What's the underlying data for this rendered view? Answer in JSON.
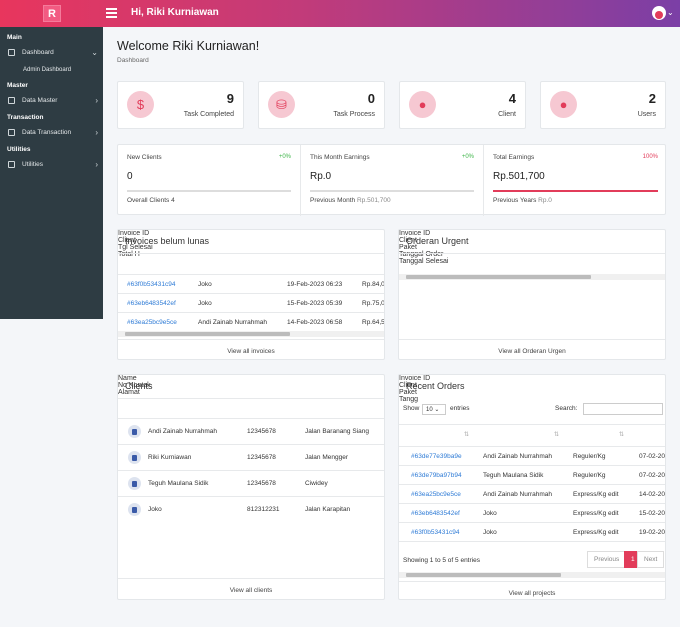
{
  "header": {
    "greeting": "Hi, Riki Kurniawan",
    "logo_letter": "R"
  },
  "sidebar": {
    "sec_main": "Main",
    "dashboard": "Dashboard",
    "admin_dashboard": "Admin Dashboard",
    "sec_master": "Master",
    "data_master": "Data Master",
    "sec_transaction": "Transaction",
    "data_transaction": "Data Transaction",
    "sec_utilities": "Utilities",
    "utilities": "Utilities"
  },
  "page": {
    "title": "Welcome Riki Kurniawan!",
    "breadcrumb": "Dashboard"
  },
  "stats": [
    {
      "value": "9",
      "label": "Task Completed",
      "icon": "dollar-icon"
    },
    {
      "value": "0",
      "label": "Task Process",
      "icon": "coins-icon"
    },
    {
      "value": "4",
      "label": "Client",
      "icon": "user-icon"
    },
    {
      "value": "2",
      "label": "Users",
      "icon": "user-icon"
    }
  ],
  "kpis": [
    {
      "title": "New Clients",
      "pct": "+0%",
      "value": "0",
      "bar_fill": 0,
      "foot": "Overall Clients 4",
      "foot_val": ""
    },
    {
      "title": "This Month Earnings",
      "pct": "+0%",
      "value": "Rp.0",
      "bar_fill": 0,
      "foot": "Previous Month ",
      "foot_val": "Rp.501,700"
    },
    {
      "title": "Total Earnings",
      "pct": "100%",
      "value": "Rp.501,700",
      "bar_fill": 1,
      "foot": "Previous Years ",
      "foot_val": "Rp.0"
    }
  ],
  "invoices": {
    "title": "Invoices belum lunas",
    "columns": [
      "Invoice ID",
      "Client",
      "Tgl Selesai",
      "Total H"
    ],
    "rows": [
      [
        "#63f0b53431c94",
        "Joko",
        "19-Feb-2023 06:23",
        "Rp.84,0"
      ],
      [
        "#63eb6483542ef",
        "Joko",
        "15-Feb-2023 05:39",
        "Rp.75,0"
      ],
      [
        "#63ea25bc9e5ce",
        "Andi Zainab Nurrahmah",
        "14-Feb-2023 06:58",
        "Rp.64,5"
      ]
    ],
    "footer": "View all invoices"
  },
  "urgent": {
    "title": "Orderan Urgent",
    "columns": [
      "Invoice ID",
      "Client",
      "Paket",
      "Tanggal Order",
      "Tanggal Selesai"
    ],
    "footer": "View all Orderan Urgen"
  },
  "clients": {
    "title": "Clients",
    "columns": [
      "Name",
      "No Kontak",
      "Alamat"
    ],
    "rows": [
      [
        "Andi Zainab Nurrahmah",
        "12345678",
        "Jalan Baranang Siang"
      ],
      [
        "Riki Kurniawan",
        "12345678",
        "Jalan Mengger"
      ],
      [
        "Teguh Maulana Sidik",
        "12345678",
        "Ciwidey"
      ],
      [
        "Joko",
        "812312231",
        "Jalan Karapitan"
      ]
    ],
    "footer": "View all clients"
  },
  "recent": {
    "title": "Recent Orders",
    "show": "Show",
    "entries_val": "10",
    "entries": "entries",
    "search_label": "Search:",
    "columns": [
      "Invoice ID",
      "Client",
      "Paket",
      "Tangg"
    ],
    "rows": [
      [
        "#63de77e39ba9e",
        "Andi Zainab Nurrahmah",
        "Reguler/Kg",
        "07-02-20"
      ],
      [
        "#63de79ba97b94",
        "Teguh Maulana Sidik",
        "Reguler/Kg",
        "07-02-20"
      ],
      [
        "#63ea25bc9e5ce",
        "Andi Zainab Nurrahmah",
        "Express/Kg edit",
        "14-02-20"
      ],
      [
        "#63eb6483542ef",
        "Joko",
        "Express/Kg edit",
        "15-02-20"
      ],
      [
        "#63f0b53431c94",
        "Joko",
        "Express/Kg edit",
        "19-02-20"
      ]
    ],
    "info": "Showing 1 to 5 of 5 entries",
    "prev": "Previous",
    "page": "1",
    "next": "Next",
    "footer": "View all projects"
  },
  "colors": {
    "accent": "#e23c5a",
    "link": "#2e7bd6",
    "positive": "#3fb64a",
    "sidebar": "#2e3c43"
  }
}
